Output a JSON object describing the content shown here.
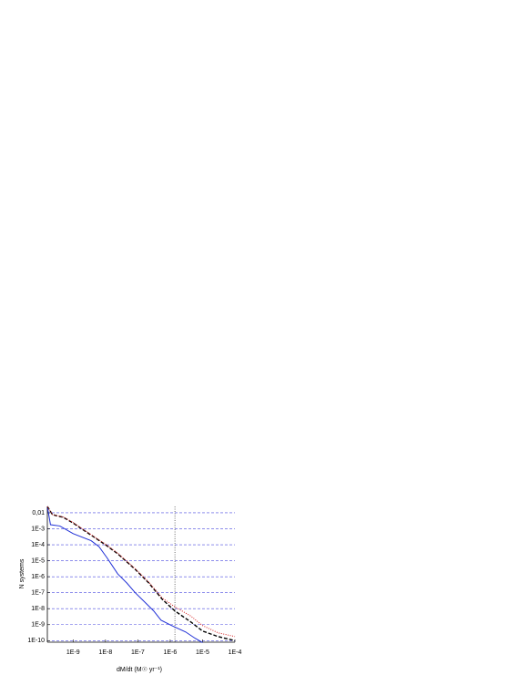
{
  "chart_data": {
    "type": "line",
    "x_label": "dM/dt   (M☉ yr⁻¹)",
    "y_label": "N systems",
    "xscale": "log",
    "yscale": "log",
    "xlim": [
      1.6e-10,
      0.0001
    ],
    "ylim": [
      8e-11,
      0.025
    ],
    "xticks": [
      {
        "value": 1e-09,
        "label": "1E-9"
      },
      {
        "value": 1e-08,
        "label": "1E-8"
      },
      {
        "value": 1e-07,
        "label": "1E-7"
      },
      {
        "value": 1e-06,
        "label": "1E-6"
      },
      {
        "value": 1e-05,
        "label": "1E-5"
      },
      {
        "value": 0.0001,
        "label": "1E-4"
      }
    ],
    "yticks": [
      {
        "value": 0.01,
        "label": "0,01"
      },
      {
        "value": 0.001,
        "label": "1E-3"
      },
      {
        "value": 0.0001,
        "label": "1E-4"
      },
      {
        "value": 1e-05,
        "label": "1E-5"
      },
      {
        "value": 1e-06,
        "label": "1E-6"
      },
      {
        "value": 1e-07,
        "label": "1E-7"
      },
      {
        "value": 1e-08,
        "label": "1E-8"
      },
      {
        "value": 1e-09,
        "label": "1E-9"
      },
      {
        "value": 1e-10,
        "label": "1E-10"
      }
    ],
    "grid": true,
    "grid_color": "#4a4ae0",
    "vline": 1.4e-06,
    "series": [
      {
        "color": "#1f2fd6",
        "dash": "solid",
        "x": [
          1.6e-10,
          2e-10,
          3.9e-10,
          1e-09,
          3.6e-09,
          6.3e-09,
          1.1e-08,
          2.4e-08,
          4.6e-08,
          8.3e-08,
          1.6e-07,
          3.1e-07,
          5.2e-07,
          1.1e-06,
          3e-06,
          5.9e-06,
          1e-05
        ],
        "values": [
          0.025,
          0.0018,
          0.0015,
          0.0005,
          0.00018,
          7.7e-05,
          1.6e-05,
          1.5e-06,
          4e-07,
          1e-07,
          2.7e-08,
          7.2e-09,
          1.9e-09,
          8.8e-10,
          3.5e-10,
          1.4e-10,
          7.5e-11
        ]
      },
      {
        "color": "#000000",
        "dash": "dashed",
        "x": [
          1.6e-10,
          2.3e-10,
          5e-10,
          1e-09,
          3.6e-09,
          1e-08,
          2.4e-08,
          8.3e-08,
          2.2e-07,
          5.8e-07,
          1.4e-06,
          4.3e-06,
          1e-05,
          3e-05,
          0.0001
        ],
        "values": [
          0.025,
          0.0077,
          0.0052,
          0.0023,
          0.0004,
          0.0001,
          2.7e-05,
          2.9e-06,
          4e-07,
          3.7e-08,
          7.2e-09,
          1.5e-09,
          4e-10,
          1.8e-10,
          1e-10
        ]
      },
      {
        "color": "#d62020",
        "dash": "dotted",
        "x": [
          1.6e-10,
          2.3e-10,
          5e-10,
          1e-09,
          3.6e-09,
          1e-08,
          2.4e-08,
          8.3e-08,
          2.2e-07,
          5.8e-07,
          1.4e-06,
          4.3e-06,
          1e-05,
          3e-05,
          0.0001
        ],
        "values": [
          0.025,
          0.0077,
          0.0055,
          0.0025,
          0.00043,
          0.00011,
          3e-05,
          3.2e-06,
          4.5e-07,
          4.5e-08,
          1.3e-08,
          3.5e-09,
          8.8e-10,
          3.1e-10,
          1.8e-10
        ]
      }
    ]
  }
}
